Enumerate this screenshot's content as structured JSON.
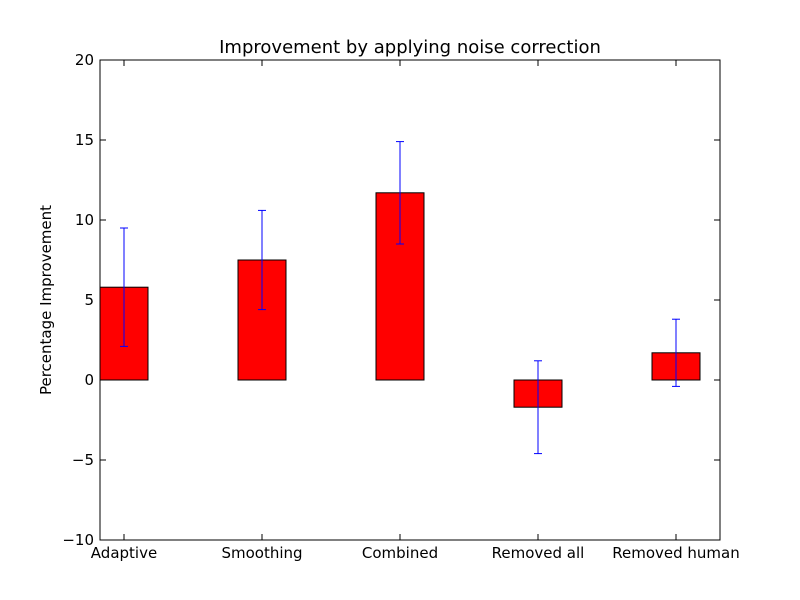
{
  "chart_data": {
    "type": "bar",
    "title": "Improvement by applying noise correction",
    "xlabel": "",
    "ylabel": "Percentage Improvement",
    "ylim": [
      -10,
      20
    ],
    "yticks": [
      -10,
      -5,
      0,
      5,
      10,
      15,
      20
    ],
    "ytick_labels": [
      "−10",
      "−5",
      "0",
      "5",
      "10",
      "15",
      "20"
    ],
    "categories": [
      "Adaptive",
      "Smoothing",
      "Combined",
      "Removed all",
      "Removed human"
    ],
    "values": [
      5.8,
      7.5,
      11.7,
      -1.7,
      1.7
    ],
    "error": [
      3.7,
      3.1,
      3.2,
      2.9,
      2.1
    ],
    "bar_color": "#ff0000",
    "error_color": "#0000ff",
    "grid": false
  }
}
